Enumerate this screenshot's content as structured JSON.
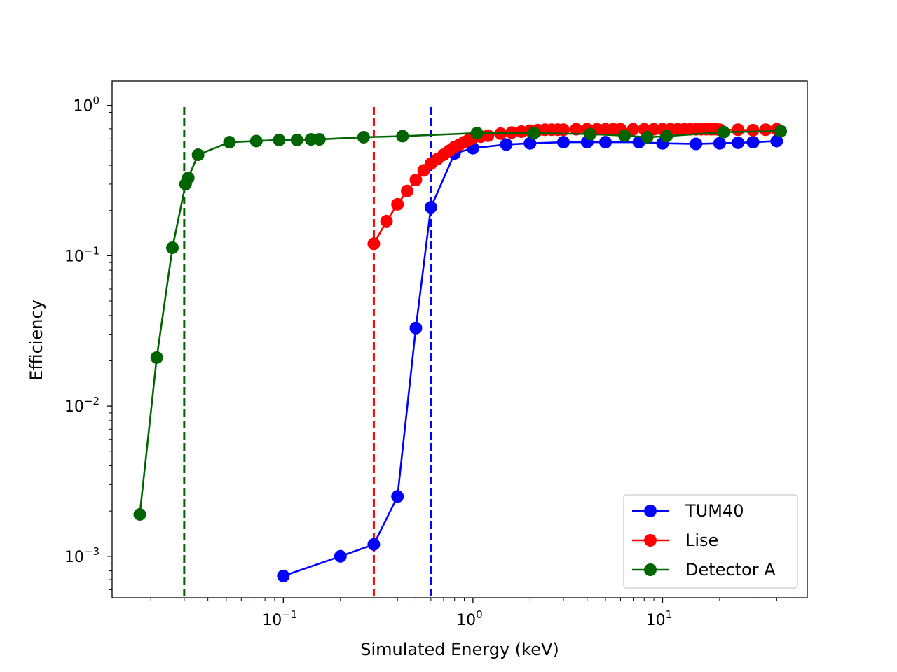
{
  "chart_data": {
    "type": "line",
    "xscale": "log",
    "yscale": "log",
    "xlabel": "Simulated Energy (keV)",
    "ylabel": "Efficiency",
    "xlim": [
      0.0125,
      58
    ],
    "ylim": [
      0.00053,
      1.45
    ],
    "xticks": [
      {
        "value": 0.1,
        "base": "10",
        "exp": "−1"
      },
      {
        "value": 1,
        "base": "10",
        "exp": "0"
      },
      {
        "value": 10,
        "base": "10",
        "exp": "1"
      }
    ],
    "yticks": [
      {
        "value": 0.001,
        "base": "10",
        "exp": "−3"
      },
      {
        "value": 0.01,
        "base": "10",
        "exp": "−2"
      },
      {
        "value": 0.1,
        "base": "10",
        "exp": "−1"
      },
      {
        "value": 1,
        "base": "10",
        "exp": "0"
      }
    ],
    "legend_position": "lower-right",
    "series": [
      {
        "name": "TUM40",
        "color": "#0000ff",
        "x": [
          0.1,
          0.2,
          0.3,
          0.4,
          0.5,
          0.6,
          0.8,
          1.0,
          1.5,
          2.0,
          3.0,
          4.0,
          5.0,
          7.5,
          10,
          15,
          20,
          25,
          30,
          40
        ],
        "y": [
          0.00074,
          0.001,
          0.0012,
          0.0025,
          0.033,
          0.21,
          0.48,
          0.52,
          0.55,
          0.56,
          0.57,
          0.57,
          0.57,
          0.57,
          0.56,
          0.555,
          0.56,
          0.565,
          0.57,
          0.58
        ],
        "threshold": 0.6
      },
      {
        "name": "Lise",
        "color": "#ff0000",
        "x": [
          0.3,
          0.35,
          0.4,
          0.45,
          0.5,
          0.55,
          0.6,
          0.65,
          0.7,
          0.75,
          0.8,
          0.85,
          0.9,
          0.95,
          1.0,
          1.1,
          1.2,
          1.4,
          1.6,
          1.8,
          2.0,
          2.2,
          2.4,
          2.6,
          2.8,
          3.0,
          3.5,
          4.0,
          4.5,
          5.0,
          5.5,
          6.0,
          7.0,
          8.0,
          9.0,
          10,
          11,
          12,
          13,
          14,
          15,
          16,
          17,
          18,
          19,
          20,
          25,
          30,
          35,
          40
        ],
        "y": [
          0.12,
          0.17,
          0.22,
          0.27,
          0.32,
          0.37,
          0.41,
          0.44,
          0.47,
          0.5,
          0.53,
          0.55,
          0.57,
          0.59,
          0.61,
          0.62,
          0.63,
          0.65,
          0.66,
          0.67,
          0.68,
          0.685,
          0.69,
          0.69,
          0.69,
          0.69,
          0.695,
          0.695,
          0.695,
          0.695,
          0.695,
          0.695,
          0.695,
          0.695,
          0.695,
          0.695,
          0.695,
          0.695,
          0.695,
          0.695,
          0.695,
          0.695,
          0.695,
          0.695,
          0.695,
          0.69,
          0.69,
          0.685,
          0.69,
          0.695
        ],
        "threshold": 0.3
      },
      {
        "name": "Detector A",
        "color": "#006400",
        "x": [
          0.0175,
          0.0215,
          0.026,
          0.0305,
          0.0315,
          0.0355,
          0.052,
          0.072,
          0.095,
          0.118,
          0.14,
          0.155,
          0.265,
          0.425,
          1.05,
          2.1,
          4.15,
          6.3,
          8.3,
          10.5,
          21,
          42
        ],
        "y": [
          0.0019,
          0.021,
          0.113,
          0.3,
          0.33,
          0.47,
          0.57,
          0.58,
          0.59,
          0.59,
          0.595,
          0.595,
          0.615,
          0.625,
          0.655,
          0.655,
          0.645,
          0.63,
          0.615,
          0.625,
          0.665,
          0.675
        ],
        "threshold": 0.03
      }
    ]
  }
}
